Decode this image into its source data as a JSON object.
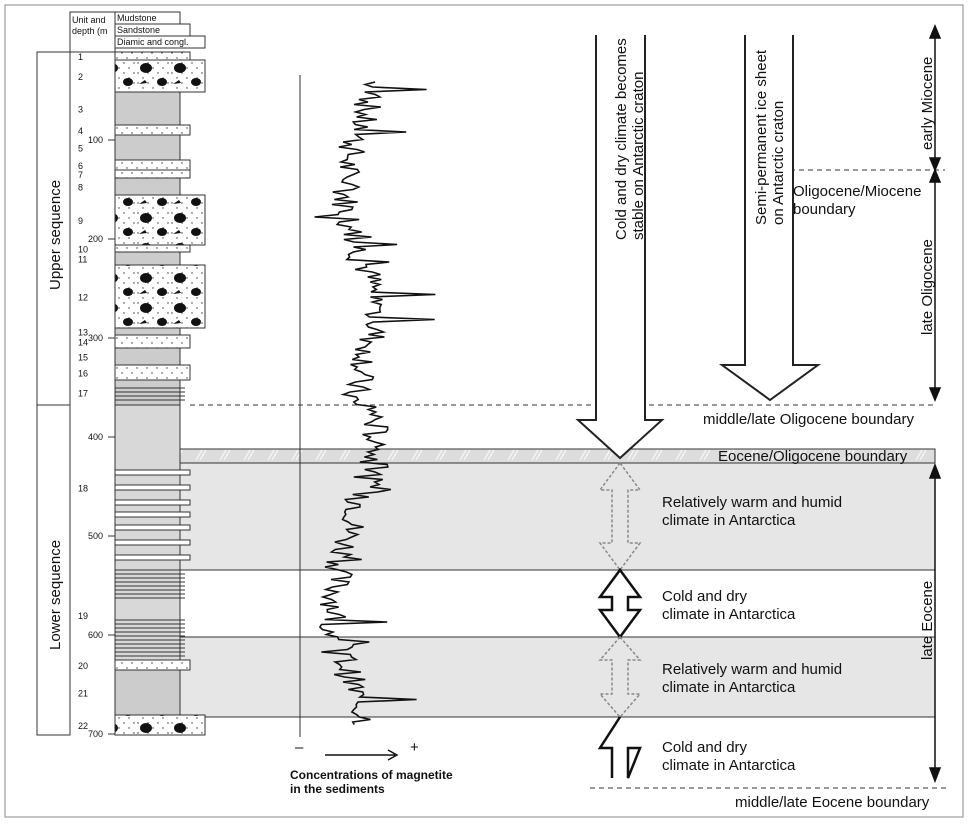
{
  "header": {
    "unit_depth": [
      "Unit and",
      "depth (m"
    ],
    "lithology": [
      "Mudstone",
      "Sandstone",
      "Diamic and congl."
    ]
  },
  "units": [
    "1",
    "2",
    "3",
    "4",
    "5",
    "6",
    "7",
    "8",
    "9",
    "10",
    "11",
    "12",
    "13",
    "14",
    "15",
    "16",
    "17",
    "18",
    "19",
    "20",
    "21",
    "22"
  ],
  "depths": [
    "100",
    "200",
    "300",
    "400",
    "500",
    "600",
    "700"
  ],
  "sequences": [
    "Upper sequence",
    "Lower sequence"
  ],
  "magnetite": {
    "minus": "–",
    "plus": "+",
    "caption": [
      "Concentrations of magnetite",
      "in the sediments"
    ]
  },
  "arrows": [
    [
      "Cold and dry climate becomes",
      "stable on Antarctic craton"
    ],
    [
      "Semi-permanent ice sheet",
      "on Antarctic craton"
    ]
  ],
  "epochs": [
    "early Miocene",
    "late Oligocene",
    "late Eocene"
  ],
  "boundaries": [
    [
      "Oligocene/Miocene",
      "boundary"
    ],
    "middle/late Oligocene boundary",
    "Eocene/Oligocene boundary",
    "middle/late Eocene boundary"
  ],
  "climate": [
    [
      "Relatively warm and humid",
      "climate in Antarctica"
    ],
    [
      "Cold and dry",
      "climate in Antarctica"
    ],
    [
      "Relatively warm and humid",
      "climate in Antarctica"
    ],
    [
      "Cold and dry",
      "climate in Antarctica"
    ]
  ]
}
